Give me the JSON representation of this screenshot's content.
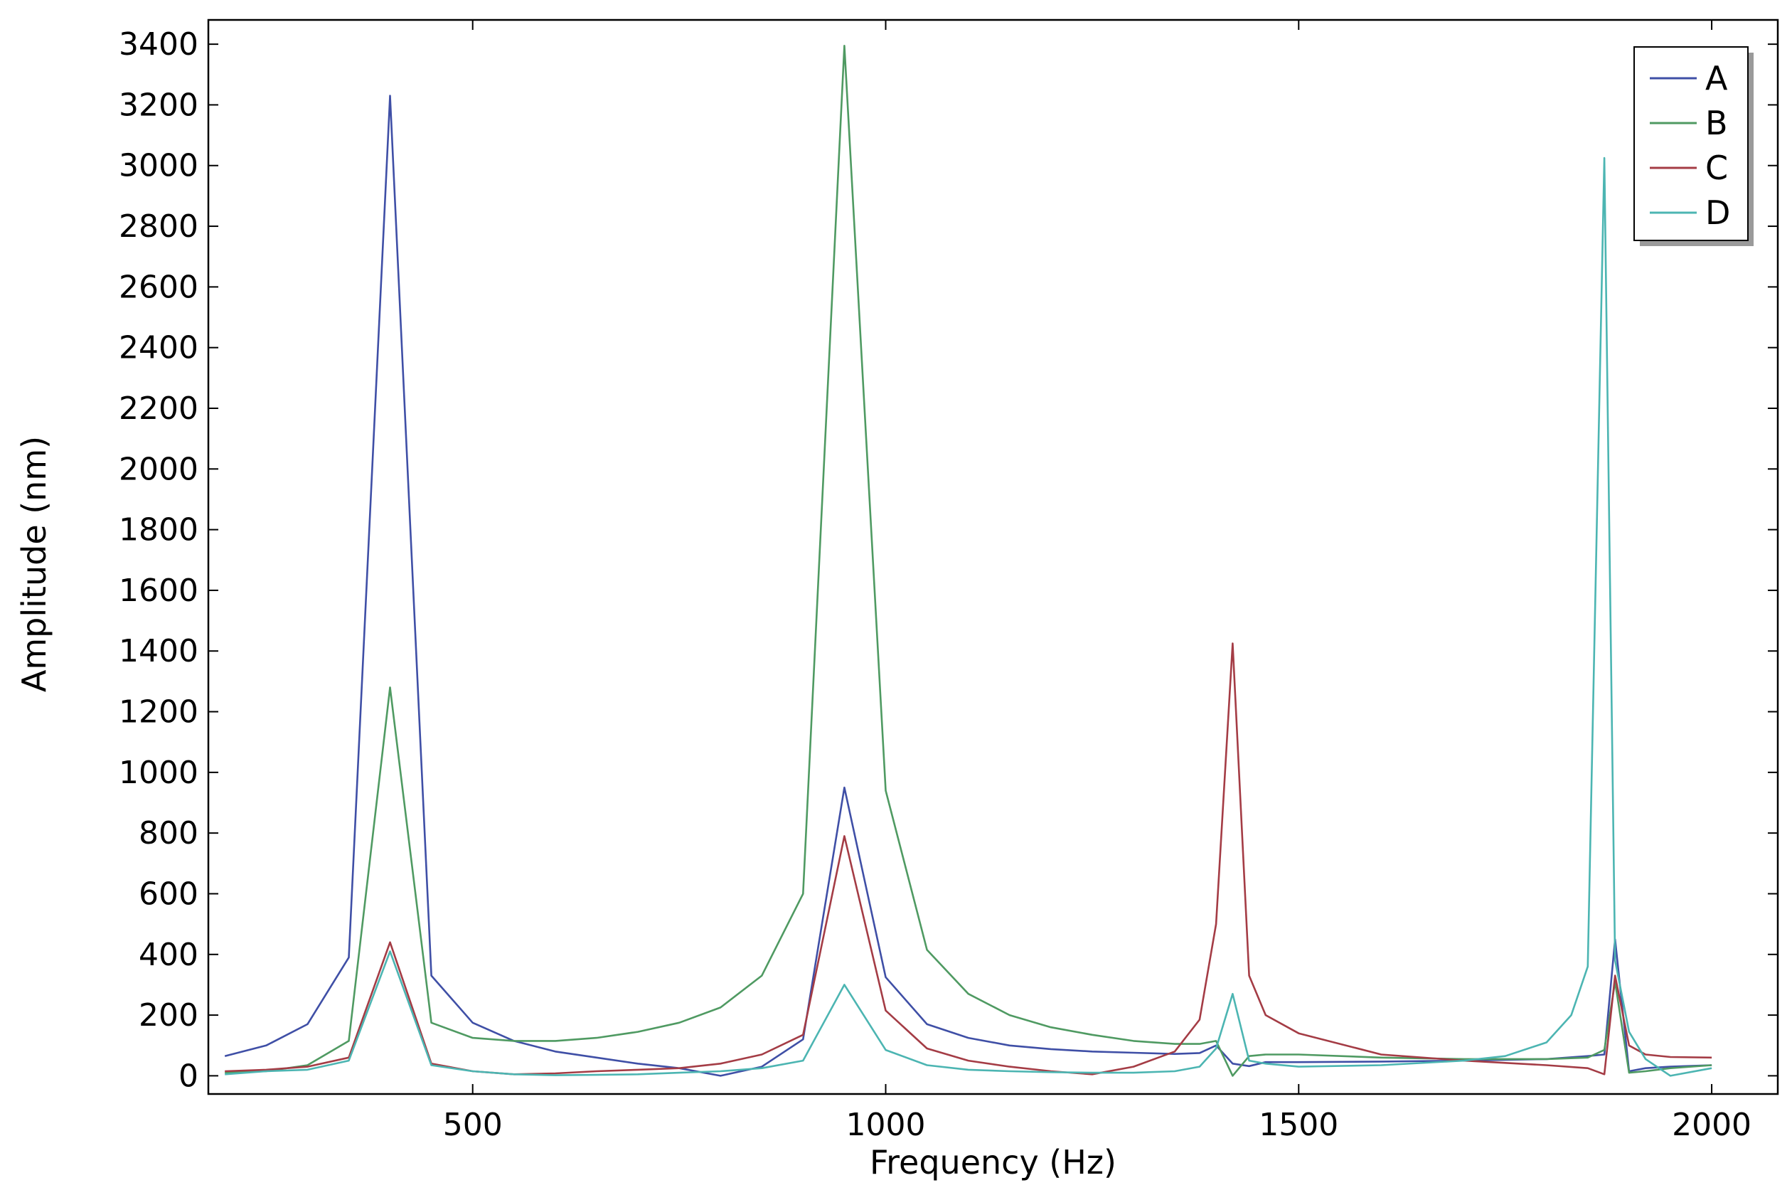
{
  "chart_data": {
    "type": "line",
    "xlabel": "Frequency (Hz)",
    "ylabel": "Amplitude (nm)",
    "xlim": [
      180,
      2080
    ],
    "ylim": [
      -60,
      3480
    ],
    "xticks": [
      500,
      1000,
      1500,
      2000
    ],
    "yticks": [
      0,
      200,
      400,
      600,
      800,
      1000,
      1200,
      1400,
      1600,
      1800,
      2000,
      2200,
      2400,
      2600,
      2800,
      3000,
      3200,
      3400
    ],
    "grid": false,
    "legend_position": "top-right",
    "series": [
      {
        "name": "A",
        "color": "#3f4fa6",
        "points": [
          [
            200,
            65
          ],
          [
            250,
            100
          ],
          [
            300,
            170
          ],
          [
            350,
            390
          ],
          [
            400,
            3230
          ],
          [
            450,
            330
          ],
          [
            500,
            175
          ],
          [
            550,
            115
          ],
          [
            600,
            80
          ],
          [
            650,
            60
          ],
          [
            700,
            40
          ],
          [
            750,
            25
          ],
          [
            800,
            0
          ],
          [
            850,
            30
          ],
          [
            900,
            120
          ],
          [
            950,
            950
          ],
          [
            1000,
            325
          ],
          [
            1050,
            170
          ],
          [
            1100,
            125
          ],
          [
            1150,
            100
          ],
          [
            1200,
            88
          ],
          [
            1250,
            80
          ],
          [
            1300,
            76
          ],
          [
            1350,
            72
          ],
          [
            1380,
            75
          ],
          [
            1400,
            100
          ],
          [
            1420,
            40
          ],
          [
            1440,
            32
          ],
          [
            1460,
            45
          ],
          [
            1500,
            45
          ],
          [
            1600,
            47
          ],
          [
            1700,
            50
          ],
          [
            1800,
            55
          ],
          [
            1850,
            65
          ],
          [
            1870,
            70
          ],
          [
            1883,
            450
          ],
          [
            1900,
            15
          ],
          [
            1920,
            25
          ],
          [
            1950,
            30
          ],
          [
            2000,
            35
          ]
        ]
      },
      {
        "name": "B",
        "color": "#4f9a62",
        "points": [
          [
            200,
            10
          ],
          [
            250,
            15
          ],
          [
            300,
            35
          ],
          [
            350,
            115
          ],
          [
            400,
            1280
          ],
          [
            450,
            175
          ],
          [
            500,
            125
          ],
          [
            550,
            115
          ],
          [
            600,
            115
          ],
          [
            650,
            125
          ],
          [
            700,
            145
          ],
          [
            750,
            175
          ],
          [
            800,
            225
          ],
          [
            850,
            330
          ],
          [
            900,
            600
          ],
          [
            950,
            3395
          ],
          [
            1000,
            940
          ],
          [
            1050,
            415
          ],
          [
            1100,
            270
          ],
          [
            1150,
            200
          ],
          [
            1200,
            160
          ],
          [
            1250,
            135
          ],
          [
            1300,
            115
          ],
          [
            1350,
            105
          ],
          [
            1380,
            105
          ],
          [
            1400,
            115
          ],
          [
            1420,
            0
          ],
          [
            1440,
            65
          ],
          [
            1460,
            70
          ],
          [
            1500,
            70
          ],
          [
            1600,
            60
          ],
          [
            1700,
            55
          ],
          [
            1800,
            55
          ],
          [
            1850,
            60
          ],
          [
            1870,
            85
          ],
          [
            1883,
            310
          ],
          [
            1900,
            10
          ],
          [
            1920,
            15
          ],
          [
            1950,
            25
          ],
          [
            2000,
            35
          ]
        ]
      },
      {
        "name": "C",
        "color": "#a43c45",
        "points": [
          [
            200,
            15
          ],
          [
            250,
            20
          ],
          [
            300,
            30
          ],
          [
            350,
            60
          ],
          [
            400,
            440
          ],
          [
            450,
            40
          ],
          [
            500,
            15
          ],
          [
            550,
            5
          ],
          [
            600,
            8
          ],
          [
            650,
            15
          ],
          [
            700,
            20
          ],
          [
            750,
            25
          ],
          [
            800,
            40
          ],
          [
            850,
            70
          ],
          [
            900,
            135
          ],
          [
            950,
            790
          ],
          [
            1000,
            215
          ],
          [
            1050,
            90
          ],
          [
            1100,
            50
          ],
          [
            1150,
            30
          ],
          [
            1200,
            15
          ],
          [
            1250,
            5
          ],
          [
            1300,
            30
          ],
          [
            1350,
            80
          ],
          [
            1380,
            185
          ],
          [
            1400,
            500
          ],
          [
            1420,
            1425
          ],
          [
            1440,
            330
          ],
          [
            1460,
            200
          ],
          [
            1500,
            140
          ],
          [
            1600,
            70
          ],
          [
            1700,
            50
          ],
          [
            1800,
            35
          ],
          [
            1850,
            25
          ],
          [
            1870,
            5
          ],
          [
            1883,
            330
          ],
          [
            1900,
            100
          ],
          [
            1920,
            70
          ],
          [
            1950,
            62
          ],
          [
            2000,
            60
          ]
        ]
      },
      {
        "name": "D",
        "color": "#4cb5b2",
        "points": [
          [
            200,
            5
          ],
          [
            250,
            15
          ],
          [
            300,
            20
          ],
          [
            350,
            50
          ],
          [
            400,
            410
          ],
          [
            450,
            35
          ],
          [
            500,
            15
          ],
          [
            550,
            5
          ],
          [
            600,
            2
          ],
          [
            650,
            3
          ],
          [
            700,
            5
          ],
          [
            750,
            10
          ],
          [
            800,
            15
          ],
          [
            850,
            25
          ],
          [
            900,
            50
          ],
          [
            950,
            300
          ],
          [
            1000,
            85
          ],
          [
            1050,
            35
          ],
          [
            1100,
            20
          ],
          [
            1150,
            15
          ],
          [
            1200,
            12
          ],
          [
            1250,
            10
          ],
          [
            1300,
            10
          ],
          [
            1350,
            15
          ],
          [
            1380,
            30
          ],
          [
            1400,
            90
          ],
          [
            1420,
            270
          ],
          [
            1440,
            50
          ],
          [
            1460,
            40
          ],
          [
            1500,
            30
          ],
          [
            1600,
            35
          ],
          [
            1700,
            50
          ],
          [
            1750,
            65
          ],
          [
            1800,
            110
          ],
          [
            1830,
            200
          ],
          [
            1850,
            360
          ],
          [
            1870,
            3025
          ],
          [
            1883,
            380
          ],
          [
            1900,
            145
          ],
          [
            1920,
            55
          ],
          [
            1950,
            0
          ],
          [
            2000,
            25
          ]
        ]
      }
    ]
  }
}
